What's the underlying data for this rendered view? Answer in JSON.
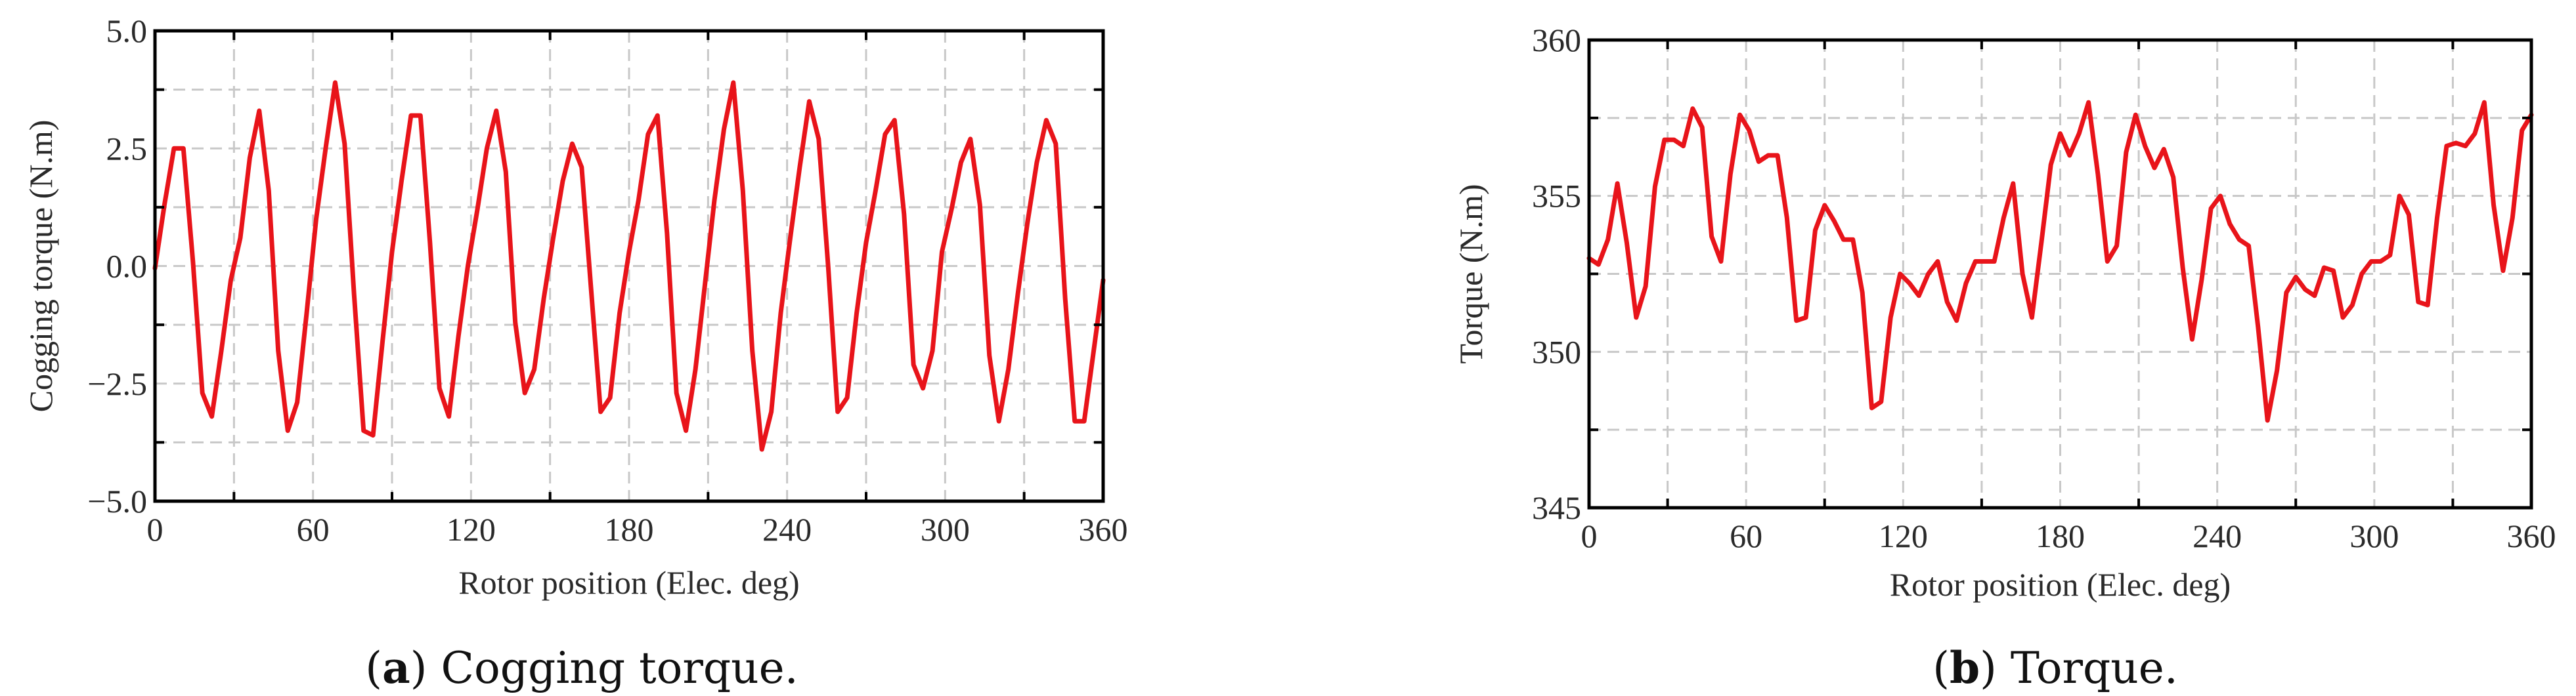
{
  "colors": {
    "line": "#e8141a",
    "grid": "#c8c8c8",
    "axis": "#000000"
  },
  "chart_data": [
    {
      "id": "cogging",
      "type": "line",
      "xlabel": "Rotor position (Elec. deg)",
      "ylabel": "Cogging torque (N.m)",
      "xlim": [
        0,
        360
      ],
      "ylim": [
        -5.0,
        5.0
      ],
      "xticks": [
        0,
        60,
        120,
        180,
        240,
        300,
        360
      ],
      "yticks": [
        -5.0,
        -2.5,
        0.0,
        2.5,
        5.0
      ],
      "ytick_labels": [
        "−5.0",
        "−2.5",
        "0.0",
        "2.5",
        "5.0"
      ],
      "grid": true,
      "caption_letter": "a",
      "caption_text": "Cogging torque.",
      "series": [
        {
          "x": [
            0,
            3.6,
            7.2,
            10.8,
            14.4,
            18,
            21.6,
            25.2,
            28.8,
            32.4,
            36,
            39.6,
            43.2,
            46.8,
            50.4,
            54,
            57.6,
            61.2,
            64.8,
            68.4,
            72,
            75.6,
            79.2,
            82.8,
            86.4,
            90,
            93.6,
            97.2,
            100.8,
            104.4,
            108,
            111.6,
            115.2,
            118.8,
            122.4,
            126,
            129.6,
            133.2,
            136.8,
            140.4,
            144,
            147.6,
            151.2,
            154.8,
            158.4,
            162,
            165.6,
            169.2,
            172.8,
            176.4,
            180,
            183.6,
            187.2,
            190.8,
            194.4,
            198,
            201.6,
            205.2,
            208.8,
            212.4,
            216,
            219.6,
            223.2,
            226.8,
            230.4,
            234,
            237.6,
            241.2,
            244.8,
            248.4,
            252,
            255.6,
            259.2,
            262.8,
            266.4,
            270,
            273.6,
            277.2,
            280.8,
            284.4,
            288,
            291.6,
            295.2,
            298.8,
            302.4,
            306,
            309.6,
            313.2,
            316.8,
            320.4,
            324,
            327.6,
            331.2,
            334.8,
            338.4,
            342,
            345.6,
            349.2,
            352.8,
            356.4,
            360
          ],
          "y": [
            -0.05,
            1.3,
            2.5,
            2.5,
            0.1,
            -2.7,
            -3.2,
            -1.8,
            -0.3,
            0.6,
            2.3,
            3.3,
            1.6,
            -1.8,
            -3.5,
            -2.9,
            -1.0,
            1.0,
            2.5,
            3.9,
            2.6,
            -0.6,
            -3.5,
            -3.6,
            -1.6,
            0.3,
            1.8,
            3.2,
            3.2,
            0.5,
            -2.6,
            -3.2,
            -1.5,
            0.0,
            1.2,
            2.5,
            3.3,
            2.0,
            -1.2,
            -2.7,
            -2.2,
            -0.7,
            0.6,
            1.8,
            2.6,
            2.1,
            -0.5,
            -3.1,
            -2.8,
            -1.0,
            0.3,
            1.4,
            2.8,
            3.2,
            0.7,
            -2.7,
            -3.5,
            -2.2,
            -0.4,
            1.4,
            2.9,
            3.9,
            1.6,
            -1.8,
            -3.9,
            -3.1,
            -1.0,
            0.6,
            2.1,
            3.5,
            2.7,
            0.0,
            -3.1,
            -2.8,
            -1.0,
            0.5,
            1.6,
            2.8,
            3.1,
            1.1,
            -2.1,
            -2.6,
            -1.8,
            0.3,
            1.2,
            2.2,
            2.7,
            1.3,
            -1.9,
            -3.3,
            -2.2,
            -0.6,
            0.9,
            2.2,
            3.1,
            2.6,
            -0.7,
            -3.3,
            -3.3,
            -1.8,
            -0.3
          ]
        }
      ]
    },
    {
      "id": "torque",
      "type": "line",
      "xlabel": "Rotor position (Elec. deg)",
      "ylabel": "Torque (N.m)",
      "xlim": [
        0,
        360
      ],
      "ylim": [
        345,
        360
      ],
      "xticks": [
        0,
        60,
        120,
        180,
        240,
        300,
        360
      ],
      "yticks": [
        345,
        350,
        355,
        360
      ],
      "ytick_labels": [
        "345",
        "350",
        "355",
        "360"
      ],
      "grid": true,
      "caption_letter": "b",
      "caption_text": "Torque.",
      "series": [
        {
          "x": [
            0,
            3.6,
            7.2,
            10.8,
            14.4,
            18,
            21.6,
            25.2,
            28.8,
            32.4,
            36,
            39.6,
            43.2,
            46.8,
            50.4,
            54,
            57.6,
            61.2,
            64.8,
            68.4,
            72,
            75.6,
            79.2,
            82.8,
            86.4,
            90,
            93.6,
            97.2,
            100.8,
            104.4,
            108,
            111.6,
            115.2,
            118.8,
            122.4,
            126,
            129.6,
            133.2,
            136.8,
            140.4,
            144,
            147.6,
            151.2,
            154.8,
            158.4,
            162,
            165.6,
            169.2,
            172.8,
            176.4,
            180,
            183.6,
            187.2,
            190.8,
            194.4,
            198,
            201.6,
            205.2,
            208.8,
            212.4,
            216,
            219.6,
            223.2,
            226.8,
            230.4,
            234,
            237.6,
            241.2,
            244.8,
            248.4,
            252,
            255.6,
            259.2,
            262.8,
            266.4,
            270,
            273.6,
            277.2,
            280.8,
            284.4,
            288,
            291.6,
            295.2,
            298.8,
            302.4,
            306,
            309.6,
            313.2,
            316.8,
            320.4,
            324,
            327.6,
            331.2,
            334.8,
            338.4,
            342,
            345.6,
            349.2,
            352.8,
            356.4,
            360
          ],
          "y": [
            353.0,
            352.8,
            353.6,
            355.4,
            353.5,
            351.1,
            352.1,
            355.3,
            356.8,
            356.8,
            356.6,
            357.8,
            357.2,
            353.7,
            352.9,
            355.7,
            357.6,
            357.1,
            356.1,
            356.3,
            356.3,
            354.3,
            351.0,
            351.1,
            353.9,
            354.7,
            354.2,
            353.6,
            353.6,
            351.9,
            348.2,
            348.4,
            351.1,
            352.5,
            352.2,
            351.8,
            352.5,
            352.9,
            351.6,
            351.0,
            352.2,
            352.9,
            352.9,
            352.9,
            354.3,
            355.4,
            352.5,
            351.1,
            353.5,
            356.0,
            357.0,
            356.3,
            357.0,
            358.0,
            355.7,
            352.9,
            353.4,
            356.4,
            357.6,
            356.6,
            355.9,
            356.5,
            355.6,
            352.7,
            350.4,
            352.3,
            354.6,
            355.0,
            354.1,
            353.6,
            353.4,
            350.8,
            347.8,
            349.4,
            351.9,
            352.4,
            352.0,
            351.8,
            352.7,
            352.6,
            351.1,
            351.5,
            352.5,
            352.9,
            352.9,
            353.1,
            355.0,
            354.4,
            351.6,
            351.5,
            354.3,
            356.6,
            356.7,
            356.6,
            357.0,
            358.0,
            354.7,
            352.6,
            354.3,
            357.1,
            357.6
          ]
        }
      ]
    }
  ]
}
